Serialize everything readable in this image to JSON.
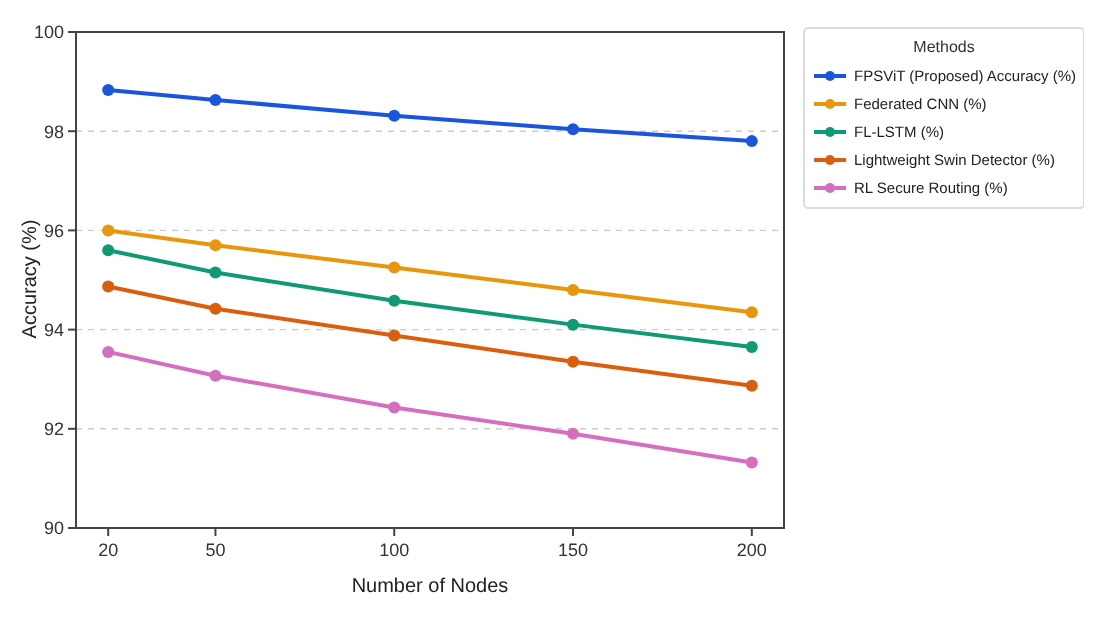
{
  "chart_data": {
    "type": "line",
    "xlabel": "Number of Nodes",
    "ylabel": "Accuracy (%)",
    "legend_title": "Methods",
    "x": [
      20,
      50,
      100,
      150,
      200
    ],
    "xlim": [
      11,
      209
    ],
    "xticks": [
      20,
      50,
      100,
      150,
      200
    ],
    "ylim": [
      90,
      100
    ],
    "yticks": [
      90,
      92,
      94,
      96,
      98,
      100
    ],
    "grid": "y",
    "legend": "right",
    "marker": "circle",
    "line_style": "solid",
    "series": [
      {
        "name": "FPSViT (Proposed) Accuracy (%)",
        "color": "#1a56db",
        "values": [
          98.83,
          98.63,
          98.31,
          98.04,
          97.8
        ]
      },
      {
        "name": "Federated CNN (%)",
        "color": "#e8960c",
        "values": [
          96.0,
          95.7,
          95.25,
          94.8,
          94.35
        ]
      },
      {
        "name": "FL-LSTM (%)",
        "color": "#0f9a73",
        "values": [
          95.6,
          95.15,
          94.58,
          94.1,
          93.65
        ]
      },
      {
        "name": "Lightweight Swin Detector (%)",
        "color": "#d95f0e",
        "values": [
          94.87,
          94.42,
          93.88,
          93.35,
          92.87
        ]
      },
      {
        "name": "RL Secure Routing (%)",
        "color": "#d46fbf",
        "values": [
          93.55,
          93.07,
          92.43,
          91.9,
          91.32
        ]
      }
    ]
  }
}
